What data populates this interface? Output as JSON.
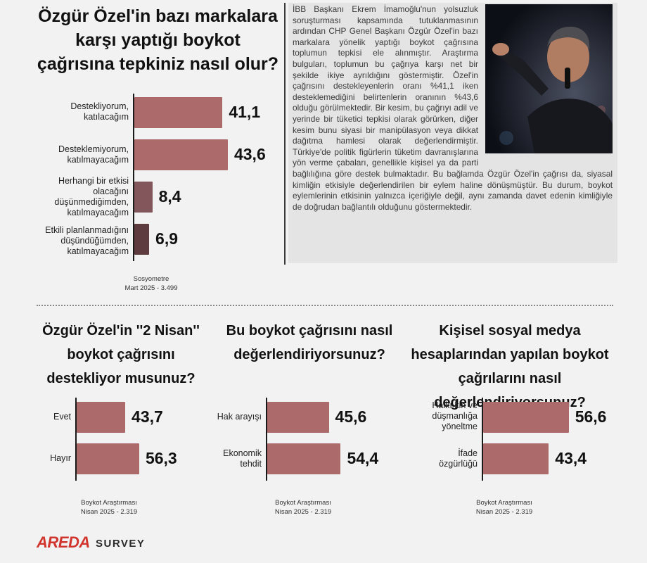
{
  "colors": {
    "bar_main": "#ad6a6a",
    "bar_third": "#82565a",
    "bar_fourth": "#5e3b3f",
    "axis": "#1a1a1a"
  },
  "article": {
    "text": "İBB Başkanı Ekrem İmamoğlu'nun yolsuzluk soruşturması kapsamında tutuklanmasının ardından CHP Genel Başkanı Özgür Özel'in bazı markalara yönelik yaptığı boykot çağrısına toplumun tepkisi ele alınmıştır. Araştırma bulguları, toplumun bu çağrıya karşı net bir şekilde ikiye ayrıldığını göstermiştir. Özel'in çağrısını destekleyenlerin oranı %41,1 iken desteklemediğini belirtenlerin oranının %43,6 olduğu görülmektedir. Bir kesim, bu çağrıyı adil ve yerinde bir tüketici tepkisi olarak görürken, diğer kesim bunu siyasi bir manipülasyon veya dikkat dağıtma hamlesi olarak değerlendirmiştir. Türkiye'de politik figürlerin tüketim davranışlarına yön verme çabaları, genellikle kişisel ya da parti bağlılığına göre destek bulmaktadır. Bu bağlamda Özgür Özel'in çağrısı da, siyasal kimliğin etkisiyle değerlendirilen bir eylem haline dönüşmüştür. Bu durum, boykot eylemlerinin etkisinin yalnızca içeriğiyle değil, aynı zamanda davet edenin kimliğiyle de doğrudan bağlantılı olduğunu göstermektedir."
  },
  "logo": {
    "brand": "AREDA",
    "suffix": "SURVEY"
  },
  "chart_data": [
    {
      "type": "bar",
      "title": "Özgür Özel'in bazı markalara karşı yaptığı boykot çağrısına tepkiniz nasıl olur?",
      "categories": [
        "Destekliyorum, katılacağım",
        "Desteklemiyorum, katılmayacağım",
        "Herhangi bir etkisi olacağını düşünmediğimden, katılmayacağım",
        "Etkili planlanmadığını düşündüğümden, katılmayacağım"
      ],
      "values": [
        41.1,
        43.6,
        8.4,
        6.9
      ],
      "value_labels": [
        "41,1",
        "43,6",
        "8,4",
        "6,9"
      ],
      "source": [
        "Sosyometre",
        "Mart 2025 - 3.499"
      ]
    },
    {
      "type": "bar",
      "title": "Özgür Özel'in ''2 Nisan'' boykot çağrısını destekliyor musunuz?",
      "categories": [
        "Evet",
        "Hayır"
      ],
      "values": [
        43.7,
        56.3
      ],
      "value_labels": [
        "43,7",
        "56,3"
      ],
      "source": [
        "Boykot Araştırması",
        "Nisan 2025 - 2.319"
      ]
    },
    {
      "type": "bar",
      "title": "Bu boykot çağrısını nasıl değerlendiriyorsunuz?",
      "categories": [
        "Hak arayışı",
        "Ekonomik tehdit"
      ],
      "values": [
        45.6,
        54.4
      ],
      "value_labels": [
        "45,6",
        "54,4"
      ],
      "source": [
        "Boykot Araştırması",
        "Nisan 2025 - 2.319"
      ]
    },
    {
      "type": "bar",
      "title": "Kişisel sosyal medya hesaplarından yapılan boykot çağrılarını nasıl değerlendiriyorsunuz?",
      "categories": [
        "Halkı kin ve düşmanlığa yöneltme",
        "İfade özgürlüğü"
      ],
      "values": [
        56.6,
        43.4
      ],
      "value_labels": [
        "56,6",
        "43,4"
      ],
      "source": [
        "Boykot Araştırması",
        "Nisan 2025 - 2.319"
      ]
    }
  ]
}
